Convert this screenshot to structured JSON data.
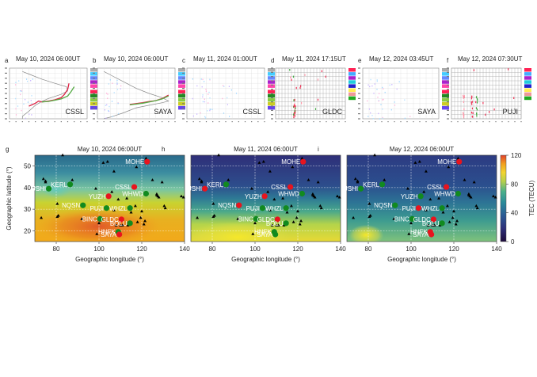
{
  "chart_data": {
    "ionograms": [
      {
        "letter": "a",
        "title": "May 10, 2024 06:00UT",
        "station": "CSSL",
        "legend": [
          "#aaaaaa",
          "#44ccff",
          "#6688ff",
          "#aa22cc",
          "#ff44aa",
          "#ff2255",
          "#228822",
          "#88cc44",
          "#cccc22",
          "#6644ee"
        ],
        "traces": [
          {
            "color": "#888888",
            "pts": [
              [
                3,
                1
              ],
              [
                3,
                30
              ],
              [
                4,
                90
              ],
              [
                5,
                160
              ],
              [
                6,
                205
              ],
              [
                7,
                240
              ],
              [
                9,
                290
              ],
              [
                10,
                330
              ],
              [
                9.8,
                380
              ],
              [
                8,
                420
              ],
              [
                6,
                470
              ],
              [
                4,
                530
              ],
              [
                3,
                560
              ]
            ]
          },
          {
            "color": "#dd2244",
            "pts": [
              [
                4,
                150
              ],
              [
                5,
                185
              ],
              [
                5.5,
                210
              ],
              [
                6,
                200
              ],
              [
                7,
                210
              ],
              [
                8,
                225
              ],
              [
                9,
                250
              ],
              [
                9.5,
                290
              ],
              [
                10,
                350
              ],
              [
                10.2,
                420
              ]
            ]
          },
          {
            "color": "#55aa44",
            "pts": [
              [
                6,
                200
              ],
              [
                7,
                205
              ],
              [
                8,
                220
              ],
              [
                9,
                235
              ],
              [
                10,
                270
              ],
              [
                10.5,
                320
              ],
              [
                11,
                380
              ]
            ]
          }
        ]
      },
      {
        "letter": "b",
        "title": "May 10, 2024 06:00UT",
        "station": "SAYA",
        "legend": [
          "#aaaaaa",
          "#44ccff",
          "#6688ff",
          "#aa22cc",
          "#ff44aa",
          "#ff2255",
          "#228822",
          "#88cc44",
          "#cccc22",
          "#6644ee"
        ],
        "traces": [
          {
            "color": "#888888",
            "pts": [
              [
                2,
                1
              ],
              [
                3,
                20
              ],
              [
                5,
                70
              ],
              [
                7,
                130
              ],
              [
                9,
                160
              ],
              [
                11,
                190
              ],
              [
                12,
                210
              ],
              [
                11,
                250
              ],
              [
                9,
                300
              ],
              [
                7,
                360
              ],
              [
                5,
                440
              ],
              [
                3,
                520
              ],
              [
                2,
                560
              ]
            ]
          },
          {
            "color": "#dd2244",
            "pts": [
              [
                6,
                170
              ],
              [
                7,
                180
              ],
              [
                8,
                190
              ],
              [
                9,
                205
              ],
              [
                10,
                215
              ],
              [
                11,
                240
              ],
              [
                12,
                280
              ]
            ]
          },
          {
            "color": "#55aa44",
            "pts": [
              [
                6,
                165
              ],
              [
                8,
                185
              ],
              [
                10,
                215
              ],
              [
                11,
                235
              ],
              [
                12,
                270
              ]
            ]
          }
        ]
      },
      {
        "letter": "c",
        "title": "May 11, 2024 01:00UT",
        "station": "CSSL",
        "legend": [
          "#aaaaaa",
          "#44ccff",
          "#6688ff",
          "#aa22cc",
          "#ff44aa",
          "#ff2255",
          "#228822",
          "#88cc44",
          "#cccc22",
          "#6644ee"
        ],
        "traces": []
      },
      {
        "letter": "d",
        "title": "May 11, 2024 17:15UT",
        "station": "GLDC",
        "legend": [
          "#ff2255",
          "#44aaff",
          "#aa22cc",
          "#22ccdd",
          "#2222cc",
          "#ffee55",
          "#ee9999",
          "#22aa22"
        ],
        "traces": []
      },
      {
        "letter": "e",
        "title": "May 12, 2024 03:45UT",
        "station": "SAYA",
        "legend": [
          "#aaaaaa",
          "#44ccff",
          "#6688ff",
          "#aa22cc",
          "#ff44aa",
          "#ff2255",
          "#228822",
          "#88cc44",
          "#cccc22",
          "#6644ee"
        ],
        "traces": []
      },
      {
        "letter": "f",
        "title": "May 12, 2024 07:30UT",
        "station": "PUJI",
        "legend": [
          "#ff2255",
          "#44aaff",
          "#aa22cc",
          "#22ccdd",
          "#2222cc",
          "#ffee55",
          "#ee9999",
          "#22aa22"
        ],
        "traces": []
      }
    ],
    "maps": [
      {
        "letter": "g",
        "title": "May 10, 2024 06:00UT",
        "theme": "high",
        "stations": [
          {
            "name": "MOHE",
            "lon": 122.5,
            "lat": 52,
            "color": "red"
          },
          {
            "name": "KERL",
            "lon": 86.5,
            "lat": 41.5,
            "color": "green"
          },
          {
            "name": "JSHI",
            "lon": 76.5,
            "lat": 39.5,
            "color": "green"
          },
          {
            "name": "CSSL",
            "lon": 116.5,
            "lat": 40.3,
            "color": "red"
          },
          {
            "name": "WHWD",
            "lon": 122,
            "lat": 37.2,
            "color": "green"
          },
          {
            "name": "YUZH",
            "lon": 104.5,
            "lat": 36,
            "color": "red"
          },
          {
            "name": "NQSN",
            "lon": 92.5,
            "lat": 31.8,
            "color": "green"
          },
          {
            "name": "PUJI",
            "lon": 103.5,
            "lat": 30.5,
            "color": "green"
          },
          {
            "name": "WHZL",
            "lon": 114.5,
            "lat": 30.5,
            "color": "green"
          },
          {
            "name": "BINC",
            "lon": 100.5,
            "lat": 25.5,
            "color": "green"
          },
          {
            "name": "GLDC",
            "lon": 110.5,
            "lat": 25.3,
            "color": "red"
          },
          {
            "name": "BOLU",
            "lon": 114.5,
            "lat": 23.5,
            "color": "green"
          },
          {
            "name": "HNFK",
            "lon": 109,
            "lat": 19.5,
            "color": "green"
          },
          {
            "name": "SAYA",
            "lon": 109.5,
            "lat": 18.3,
            "color": "red"
          }
        ]
      },
      {
        "letter": "h",
        "title": "May 11, 2024 06:00UT",
        "theme": "low",
        "stations": [
          {
            "name": "MOHE",
            "lon": 122.5,
            "lat": 52,
            "color": "red"
          },
          {
            "name": "KERL",
            "lon": 86.5,
            "lat": 41.5,
            "color": "green"
          },
          {
            "name": "JSHI",
            "lon": 76.5,
            "lat": 39.5,
            "color": "red"
          },
          {
            "name": "CSSL",
            "lon": 116.5,
            "lat": 40.3,
            "color": "red"
          },
          {
            "name": "WHWD",
            "lon": 122,
            "lat": 37.2,
            "color": "green"
          },
          {
            "name": "YUZH",
            "lon": 104.5,
            "lat": 36,
            "color": "red"
          },
          {
            "name": "NQSN",
            "lon": 92.5,
            "lat": 31.8,
            "color": "red"
          },
          {
            "name": "PUJI",
            "lon": 103.5,
            "lat": 30.5,
            "color": "green"
          },
          {
            "name": "WHZL",
            "lon": 114.5,
            "lat": 30.5,
            "color": "green"
          },
          {
            "name": "BINC",
            "lon": 100.5,
            "lat": 25.5,
            "color": "green"
          },
          {
            "name": "GLDC",
            "lon": 110.5,
            "lat": 25.3,
            "color": "red"
          },
          {
            "name": "BOLU",
            "lon": 114.5,
            "lat": 23.5,
            "color": "green"
          },
          {
            "name": "HNFK",
            "lon": 109,
            "lat": 19.5,
            "color": "green"
          },
          {
            "name": "SAYA",
            "lon": 109.5,
            "lat": 18.3,
            "color": "green"
          }
        ]
      },
      {
        "letter": "i",
        "title": "May 12, 2024 06:00UT",
        "theme": "mid",
        "stations": [
          {
            "name": "MOHE",
            "lon": 122.5,
            "lat": 52,
            "color": "red"
          },
          {
            "name": "KERL",
            "lon": 86.5,
            "lat": 41.5,
            "color": "green"
          },
          {
            "name": "JSHI",
            "lon": 76.5,
            "lat": 39.5,
            "color": "green"
          },
          {
            "name": "CSSL",
            "lon": 116.5,
            "lat": 40.3,
            "color": "red"
          },
          {
            "name": "WHWD",
            "lon": 122,
            "lat": 37.2,
            "color": "green"
          },
          {
            "name": "YUZH",
            "lon": 104.5,
            "lat": 36,
            "color": "green"
          },
          {
            "name": "NQSN",
            "lon": 92.5,
            "lat": 31.8,
            "color": "green"
          },
          {
            "name": "PUJI",
            "lon": 103.5,
            "lat": 30.5,
            "color": "red"
          },
          {
            "name": "WHZL",
            "lon": 114.5,
            "lat": 30.5,
            "color": "green"
          },
          {
            "name": "BINC",
            "lon": 100.5,
            "lat": 25.5,
            "color": "green"
          },
          {
            "name": "GLDC",
            "lon": 110.5,
            "lat": 25.3,
            "color": "red"
          },
          {
            "name": "BOLU",
            "lon": 114.5,
            "lat": 23.5,
            "color": "green"
          },
          {
            "name": "HNFK",
            "lon": 109,
            "lat": 19.5,
            "color": "red"
          },
          {
            "name": "SAYA",
            "lon": 109.5,
            "lat": 18.3,
            "color": "red"
          }
        ]
      }
    ],
    "triangles": [
      [
        74,
        44
      ],
      [
        75,
        43
      ],
      [
        75,
        42.5
      ],
      [
        73,
        26
      ],
      [
        80.5,
        32.5
      ],
      [
        80.5,
        26.5
      ],
      [
        81,
        27
      ],
      [
        83,
        55
      ],
      [
        87.5,
        43.5
      ],
      [
        92,
        25.5
      ],
      [
        98.5,
        39.5
      ],
      [
        99,
        18.5
      ],
      [
        100,
        23.5
      ],
      [
        102,
        51.5
      ],
      [
        104,
        52
      ],
      [
        106,
        38
      ],
      [
        107,
        29.5
      ],
      [
        107,
        47.5
      ],
      [
        108,
        22.5
      ],
      [
        109,
        34.5
      ],
      [
        110,
        22.5
      ],
      [
        111,
        22.5
      ],
      [
        113,
        35
      ],
      [
        113.5,
        22.5
      ],
      [
        115,
        28.5
      ],
      [
        117,
        31.5
      ],
      [
        117.5,
        49.5
      ],
      [
        118,
        24
      ],
      [
        119.5,
        26
      ],
      [
        120,
        29
      ],
      [
        121,
        23
      ],
      [
        121.5,
        24.5
      ],
      [
        122,
        53.5
      ],
      [
        125,
        43.5
      ],
      [
        127,
        37
      ],
      [
        127,
        36.5
      ],
      [
        127.5,
        36
      ],
      [
        128,
        35.5
      ],
      [
        129.5,
        42.5
      ],
      [
        130.5,
        31.5
      ],
      [
        131,
        30.5
      ],
      [
        138.5,
        36
      ],
      [
        139.5,
        35.5
      ]
    ],
    "map_xlabel": "Geographic longitude (°)",
    "map_ylabel": "Geographic latitude (°)",
    "map_xlim": [
      70,
      140
    ],
    "map_ylim": [
      15,
      55
    ],
    "map_xticks": [
      80,
      100,
      120,
      140
    ],
    "map_yticks": [
      20,
      30,
      40,
      50
    ],
    "colorbar": {
      "label": "TEC (TECU)",
      "range": [
        0,
        120
      ],
      "ticks": [
        0,
        40,
        80,
        120
      ]
    },
    "ion_xlim": [
      1,
      13
    ],
    "ion_ylim": [
      0,
      600
    ]
  }
}
